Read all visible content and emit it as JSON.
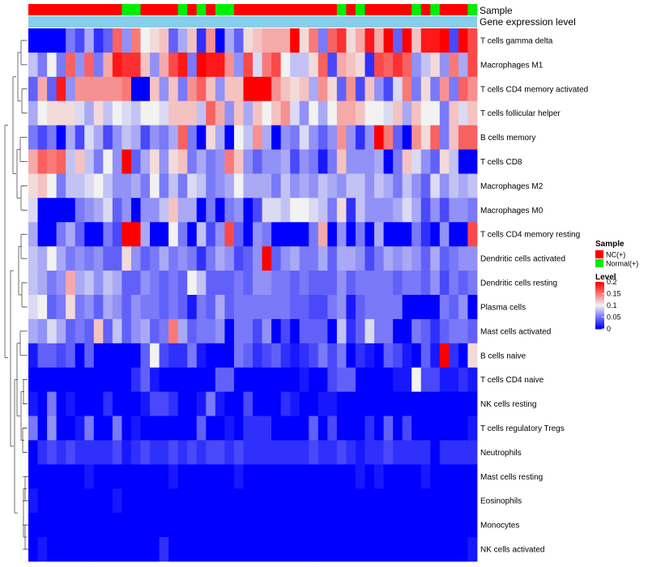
{
  "chart_data": {
    "type": "heatmap",
    "title": "",
    "annotation_labels": [
      "Sample",
      "Gene expression level"
    ],
    "sample_groups": [
      "NC(+)",
      "NC(+)",
      "NC(+)",
      "NC(+)",
      "NC(+)",
      "NC(+)",
      "NC(+)",
      "NC(+)",
      "NC(+)",
      "NC(+)",
      "Normal(+)",
      "Normal(+)",
      "NC(+)",
      "NC(+)",
      "NC(+)",
      "NC(+)",
      "Normal(+)",
      "NC(+)",
      "Normal(+)",
      "NC(+)",
      "Normal(+)",
      "Normal(+)",
      "NC(+)",
      "NC(+)",
      "NC(+)",
      "NC(+)",
      "NC(+)",
      "NC(+)",
      "NC(+)",
      "NC(+)",
      "NC(+)",
      "NC(+)",
      "NC(+)",
      "Normal(+)",
      "NC(+)",
      "Normal(+)",
      "NC(+)",
      "NC(+)",
      "NC(+)",
      "NC(+)",
      "NC(+)",
      "Normal(+)",
      "NC(+)",
      "Normal(+)",
      "NC(+)",
      "NC(+)",
      "NC(+)",
      "Normal(+)"
    ],
    "rows": [
      "T cells gamma delta",
      "Macrophages M1",
      "T cells CD4 memory activated",
      "T cells follicular helper",
      "B cells memory",
      "T cells CD8",
      "Macrophages M2",
      "Macrophages M0",
      "T cells CD4 memory resting",
      "Dendritic cells activated",
      "Dendritic cells resting",
      "Plasma cells",
      "Mast cells activated",
      "B cells naive",
      "T cells CD4 naive",
      "NK cells resting",
      "T cells regulatory  Tregs",
      "Neutrophils",
      "Mast cells resting",
      "Eosinophils",
      "Monocytes",
      "NK cells activated"
    ],
    "values": [
      [
        0.0,
        0.0,
        0.0,
        0.0,
        0.05,
        0.03,
        0.07,
        0.02,
        0.04,
        0.16,
        0.06,
        0.15,
        0.1,
        0.11,
        0.12,
        0.04,
        0.07,
        0.12,
        0.02,
        0.14,
        0.0,
        0.07,
        0.04,
        0.11,
        0.12,
        0.13,
        0.13,
        0.13,
        0.2,
        0.11,
        0.15,
        0.05,
        0.16,
        0.18,
        0.11,
        0.13,
        0.19,
        0.13,
        0.2,
        0.04,
        0.2,
        0.12,
        0.19,
        0.19,
        0.2,
        0.03,
        0.2,
        0.17
      ],
      [
        0.08,
        0.05,
        0.1,
        0.05,
        0.16,
        0.06,
        0.16,
        0.05,
        0.13,
        0.19,
        0.18,
        0.18,
        0.12,
        0.06,
        0.13,
        0.17,
        0.19,
        0.05,
        0.2,
        0.19,
        0.19,
        0.14,
        0.06,
        0.17,
        0.09,
        0.15,
        0.17,
        0.1,
        0.08,
        0.08,
        0.11,
        0.16,
        0.03,
        0.13,
        0.12,
        0.11,
        0.02,
        0.17,
        0.16,
        0.18,
        0.16,
        0.06,
        0.08,
        0.11,
        0.06,
        0.15,
        0.07,
        0.17
      ],
      [
        0.04,
        0.13,
        0.04,
        0.19,
        0.06,
        0.14,
        0.14,
        0.14,
        0.14,
        0.14,
        0.15,
        0.0,
        0.0,
        0.12,
        0.06,
        0.12,
        0.05,
        0.14,
        0.16,
        0.12,
        0.06,
        0.12,
        0.12,
        0.2,
        0.2,
        0.2,
        0.14,
        0.12,
        0.11,
        0.12,
        0.07,
        0.14,
        0.11,
        0.04,
        0.14,
        0.03,
        0.12,
        0.06,
        0.03,
        0.09,
        0.15,
        0.05,
        0.11,
        0.05,
        0.14,
        0.05,
        0.16,
        0.14
      ],
      [
        0.07,
        0.1,
        0.11,
        0.11,
        0.11,
        0.09,
        0.07,
        0.11,
        0.08,
        0.1,
        0.09,
        0.08,
        0.1,
        0.1,
        0.09,
        0.12,
        0.12,
        0.12,
        0.08,
        0.16,
        0.13,
        0.06,
        0.12,
        0.07,
        0.12,
        0.1,
        0.12,
        0.14,
        0.09,
        0.06,
        0.1,
        0.07,
        0.1,
        0.13,
        0.13,
        0.12,
        0.1,
        0.1,
        0.09,
        0.12,
        0.07,
        0.12,
        0.1,
        0.1,
        0.05,
        0.12,
        0.09,
        0.12
      ],
      [
        0.05,
        0.03,
        0.05,
        0.0,
        0.07,
        0.03,
        0.09,
        0.07,
        0.03,
        0.06,
        0.08,
        0.07,
        0.03,
        0.06,
        0.05,
        0.07,
        0.16,
        0.05,
        0.0,
        0.11,
        0.07,
        0.0,
        0.1,
        0.08,
        0.14,
        0.07,
        0.0,
        0.06,
        0.05,
        0.09,
        0.06,
        0.04,
        0.06,
        0.14,
        0.06,
        0.02,
        0.06,
        0.2,
        0.15,
        0.04,
        0.0,
        0.14,
        0.11,
        0.16,
        0.05,
        0.12,
        0.16,
        0.16
      ],
      [
        0.13,
        0.16,
        0.15,
        0.16,
        0.08,
        0.12,
        0.08,
        0.05,
        0.1,
        0.06,
        0.2,
        0.04,
        0.07,
        0.11,
        0.06,
        0.11,
        0.12,
        0.05,
        0.07,
        0.05,
        0.06,
        0.15,
        0.12,
        0.06,
        0.04,
        0.06,
        0.06,
        0.07,
        0.03,
        0.06,
        0.05,
        0.01,
        0.05,
        0.12,
        0.06,
        0.06,
        0.06,
        0.07,
        0.0,
        0.05,
        0.12,
        0.09,
        0.06,
        0.04,
        0.11,
        0.08,
        0.0,
        0.0
      ],
      [
        0.11,
        0.12,
        0.1,
        0.05,
        0.08,
        0.08,
        0.09,
        0.1,
        0.08,
        0.06,
        0.06,
        0.07,
        0.05,
        0.1,
        0.05,
        0.08,
        0.05,
        0.09,
        0.08,
        0.05,
        0.06,
        0.07,
        0.1,
        0.07,
        0.07,
        0.07,
        0.05,
        0.08,
        0.06,
        0.07,
        0.06,
        0.08,
        0.07,
        0.06,
        0.08,
        0.08,
        0.06,
        0.08,
        0.07,
        0.05,
        0.08,
        0.06,
        0.04,
        0.09,
        0.06,
        0.08,
        0.07,
        0.08
      ],
      [
        0.09,
        0.0,
        0.0,
        0.0,
        0.0,
        0.05,
        0.06,
        0.07,
        0.09,
        0.04,
        0.06,
        0.0,
        0.06,
        0.06,
        0.08,
        0.12,
        0.07,
        0.07,
        0.0,
        0.05,
        0.0,
        0.05,
        0.06,
        0.0,
        0.03,
        0.09,
        0.09,
        0.08,
        0.1,
        0.1,
        0.09,
        0.08,
        0.05,
        0.11,
        0.02,
        0.08,
        0.06,
        0.06,
        0.06,
        0.07,
        0.09,
        0.07,
        0.03,
        0.06,
        0.03,
        0.06,
        0.06,
        0.05
      ],
      [
        0.07,
        0.0,
        0.0,
        0.05,
        0.07,
        0.04,
        0.0,
        0.0,
        0.05,
        0.03,
        0.2,
        0.2,
        0.07,
        0.0,
        0.0,
        0.1,
        0.05,
        0.0,
        0.08,
        0.03,
        0.06,
        0.17,
        0.04,
        0.0,
        0.06,
        0.05,
        0.0,
        0.0,
        0.0,
        0.0,
        0.05,
        0.13,
        0.0,
        0.06,
        0.0,
        0.05,
        0.0,
        0.07,
        0.0,
        0.0,
        0.0,
        0.05,
        0.02,
        0.0,
        0.06,
        0.0,
        0.0,
        0.17
      ],
      [
        0.08,
        0.07,
        0.1,
        0.07,
        0.05,
        0.06,
        0.05,
        0.06,
        0.04,
        0.04,
        0.11,
        0.06,
        0.04,
        0.05,
        0.07,
        0.05,
        0.06,
        0.05,
        0.02,
        0.05,
        0.07,
        0.06,
        0.03,
        0.04,
        0.06,
        0.2,
        0.04,
        0.06,
        0.07,
        0.05,
        0.05,
        0.07,
        0.04,
        0.07,
        0.07,
        0.06,
        0.03,
        0.05,
        0.07,
        0.06,
        0.07,
        0.06,
        0.04,
        0.07,
        0.04,
        0.05,
        0.06,
        0.06
      ],
      [
        0.08,
        0.07,
        0.05,
        0.06,
        0.13,
        0.07,
        0.08,
        0.06,
        0.08,
        0.07,
        0.04,
        0.04,
        0.06,
        0.05,
        0.04,
        0.05,
        0.04,
        0.1,
        0.08,
        0.04,
        0.04,
        0.04,
        0.05,
        0.04,
        0.06,
        0.06,
        0.05,
        0.05,
        0.04,
        0.05,
        0.04,
        0.04,
        0.04,
        0.06,
        0.04,
        0.05,
        0.05,
        0.05,
        0.05,
        0.04,
        0.05,
        0.05,
        0.04,
        0.06,
        0.03,
        0.05,
        0.04,
        0.05
      ],
      [
        0.09,
        0.1,
        0.04,
        0.05,
        0.11,
        0.05,
        0.06,
        0.04,
        0.07,
        0.06,
        0.04,
        0.06,
        0.05,
        0.05,
        0.04,
        0.05,
        0.04,
        0.01,
        0.05,
        0.04,
        0.07,
        0.04,
        0.05,
        0.05,
        0.05,
        0.05,
        0.05,
        0.05,
        0.04,
        0.04,
        0.03,
        0.03,
        0.05,
        0.06,
        0.01,
        0.04,
        0.05,
        0.05,
        0.05,
        0.05,
        0.0,
        0.0,
        0.0,
        0.0,
        0.05,
        0.04,
        0.06,
        0.0
      ],
      [
        0.07,
        0.06,
        0.09,
        0.07,
        0.04,
        0.05,
        0.04,
        0.12,
        0.04,
        0.08,
        0.04,
        0.06,
        0.07,
        0.04,
        0.05,
        0.15,
        0.07,
        0.04,
        0.05,
        0.05,
        0.06,
        0.0,
        0.05,
        0.05,
        0.03,
        0.06,
        0.0,
        0.03,
        0.0,
        0.04,
        0.04,
        0.04,
        0.0,
        0.08,
        0.02,
        0.04,
        0.09,
        0.05,
        0.05,
        0.0,
        0.0,
        0.05,
        0.04,
        0.02,
        0.04,
        0.05,
        0.05,
        0.04
      ],
      [
        0.01,
        0.04,
        0.04,
        0.03,
        0.04,
        0.0,
        0.04,
        0.0,
        0.0,
        0.0,
        0.0,
        0.0,
        0.04,
        0.1,
        0.03,
        0.02,
        0.02,
        0.05,
        0.01,
        0.0,
        0.0,
        0.0,
        0.05,
        0.04,
        0.02,
        0.03,
        0.04,
        0.02,
        0.01,
        0.02,
        0.03,
        0.05,
        0.03,
        0.05,
        0.0,
        0.02,
        0.01,
        0.0,
        0.04,
        0.03,
        0.01,
        0.0,
        0.04,
        0.01,
        0.2,
        0.02,
        0.0,
        0.11
      ],
      [
        0.0,
        0.0,
        0.0,
        0.0,
        0.0,
        0.0,
        0.0,
        0.0,
        0.0,
        0.0,
        0.0,
        0.02,
        0.04,
        0.01,
        0.0,
        0.0,
        0.0,
        0.0,
        0.0,
        0.0,
        0.04,
        0.04,
        0.0,
        0.0,
        0.0,
        0.0,
        0.0,
        0.0,
        0.0,
        0.01,
        0.0,
        0.0,
        0.03,
        0.04,
        0.04,
        0.0,
        0.0,
        0.0,
        0.0,
        0.01,
        0.01,
        0.1,
        0.03,
        0.03,
        0.01,
        0.01,
        0.02,
        0.01
      ],
      [
        0.01,
        0.0,
        0.05,
        0.0,
        0.01,
        0.0,
        0.0,
        0.0,
        0.02,
        0.0,
        0.0,
        0.0,
        0.01,
        0.03,
        0.03,
        0.02,
        0.0,
        0.0,
        0.01,
        0.05,
        0.01,
        0.0,
        0.0,
        0.03,
        0.0,
        0.0,
        0.0,
        0.02,
        0.01,
        0.0,
        0.0,
        0.01,
        0.01,
        0.0,
        0.0,
        0.0,
        0.0,
        0.0,
        0.0,
        0.0,
        0.0,
        0.0,
        0.0,
        0.0,
        0.0,
        0.0,
        0.0,
        0.0
      ],
      [
        0.05,
        0.0,
        0.06,
        0.0,
        0.0,
        0.01,
        0.05,
        0.0,
        0.0,
        0.05,
        0.0,
        0.01,
        0.0,
        0.0,
        0.0,
        0.0,
        0.0,
        0.0,
        0.04,
        0.0,
        0.0,
        0.01,
        0.0,
        0.02,
        0.02,
        0.02,
        0.0,
        0.0,
        0.0,
        0.0,
        0.04,
        0.0,
        0.03,
        0.0,
        0.0,
        0.0,
        0.02,
        0.0,
        0.04,
        0.0,
        0.03,
        0.0,
        0.0,
        0.0,
        0.0,
        0.0,
        0.0,
        0.01
      ],
      [
        0.0,
        0.02,
        0.03,
        0.02,
        0.03,
        0.02,
        0.02,
        0.02,
        0.02,
        0.03,
        0.01,
        0.02,
        0.03,
        0.02,
        0.02,
        0.03,
        0.02,
        0.03,
        0.02,
        0.03,
        0.03,
        0.02,
        0.03,
        0.02,
        0.02,
        0.02,
        0.02,
        0.02,
        0.02,
        0.02,
        0.03,
        0.02,
        0.02,
        0.03,
        0.02,
        0.01,
        0.02,
        0.02,
        0.03,
        0.02,
        0.02,
        0.02,
        0.02,
        0.0,
        0.02,
        0.02,
        0.02,
        0.02
      ],
      [
        0.0,
        0.0,
        0.0,
        0.0,
        0.0,
        0.0,
        0.01,
        0.0,
        0.0,
        0.0,
        0.0,
        0.0,
        0.0,
        0.0,
        0.0,
        0.01,
        0.0,
        0.0,
        0.0,
        0.0,
        0.0,
        0.0,
        0.01,
        0.0,
        0.0,
        0.0,
        0.0,
        0.0,
        0.0,
        0.0,
        0.0,
        0.0,
        0.0,
        0.0,
        0.0,
        0.01,
        0.0,
        0.01,
        0.0,
        0.0,
        0.0,
        0.0,
        0.01,
        0.0,
        0.0,
        0.0,
        0.0,
        0.0
      ],
      [
        0.01,
        0.0,
        0.0,
        0.0,
        0.0,
        0.0,
        0.0,
        0.0,
        0.0,
        0.01,
        0.0,
        0.0,
        0.0,
        0.0,
        0.0,
        0.0,
        0.0,
        0.0,
        0.0,
        0.0,
        0.0,
        0.0,
        0.0,
        0.0,
        0.0,
        0.0,
        0.0,
        0.0,
        0.0,
        0.0,
        0.0,
        0.0,
        0.0,
        0.0,
        0.0,
        0.0,
        0.0,
        0.0,
        0.0,
        0.0,
        0.0,
        0.0,
        0.0,
        0.0,
        0.0,
        0.0,
        0.0,
        0.0
      ],
      [
        0.0,
        0.0,
        0.0,
        0.0,
        0.0,
        0.0,
        0.0,
        0.0,
        0.0,
        0.0,
        0.0,
        0.0,
        0.0,
        0.0,
        0.0,
        0.0,
        0.0,
        0.0,
        0.0,
        0.0,
        0.0,
        0.0,
        0.0,
        0.0,
        0.0,
        0.0,
        0.0,
        0.0,
        0.0,
        0.0,
        0.0,
        0.0,
        0.0,
        0.0,
        0.0,
        0.0,
        0.0,
        0.0,
        0.0,
        0.0,
        0.0,
        0.0,
        0.0,
        0.0,
        0.0,
        0.0,
        0.0,
        0.0
      ],
      [
        0.0,
        0.01,
        0.0,
        0.0,
        0.0,
        0.0,
        0.0,
        0.0,
        0.0,
        0.0,
        0.0,
        0.0,
        0.0,
        0.0,
        0.02,
        0.0,
        0.0,
        0.0,
        0.0,
        0.0,
        0.0,
        0.0,
        0.0,
        0.0,
        0.0,
        0.0,
        0.0,
        0.0,
        0.0,
        0.0,
        0.0,
        0.0,
        0.0,
        0.0,
        0.0,
        0.0,
        0.0,
        0.0,
        0.0,
        0.0,
        0.0,
        0.0,
        0.0,
        0.0,
        0.0,
        0.0,
        0.0,
        0.01
      ]
    ],
    "color_scale": {
      "min": 0,
      "mid": 0.1,
      "max": 0.2,
      "low_color": "#0000ff",
      "mid_color": "#f2f2f2",
      "high_color": "#ff0000"
    },
    "legend": {
      "sample_title": "Sample",
      "sample_items": [
        {
          "label": "NC(+)",
          "color": "#ff0000"
        },
        {
          "label": "Normal(+)",
          "color": "#00ee00"
        }
      ],
      "level_title": "Level",
      "level_ticks": [
        {
          "value": 0.2,
          "label": "0.2"
        },
        {
          "value": 0.15,
          "label": "0.15"
        },
        {
          "value": 0.1,
          "label": "0.1"
        },
        {
          "value": 0.05,
          "label": "0.05"
        },
        {
          "value": 0,
          "label": "0"
        }
      ]
    },
    "gene_expression_bar_color": "#87ceeb"
  }
}
